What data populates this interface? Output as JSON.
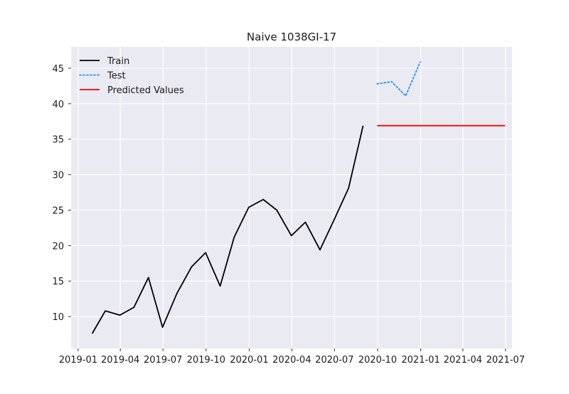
{
  "chart_data": {
    "type": "line",
    "title": "Naive 1038GI-17",
    "xlabel": "",
    "ylabel": "",
    "x_ticks": [
      "2019-01",
      "2019-04",
      "2019-07",
      "2019-10",
      "2020-01",
      "2020-04",
      "2020-07",
      "2020-10",
      "2021-01",
      "2021-04",
      "2021-07"
    ],
    "y_ticks": [
      "10",
      "15",
      "20",
      "25",
      "30",
      "35",
      "40",
      "45"
    ],
    "xlim": [
      "2018-12-17",
      "2021-07-15"
    ],
    "ylim": [
      5.5,
      48
    ],
    "grid": true,
    "legend_position": "top-left",
    "series": [
      {
        "name": "Train",
        "style": "solid",
        "color": "#000000",
        "x": [
          "2019-01-31",
          "2019-02-28",
          "2019-03-31",
          "2019-04-30",
          "2019-05-31",
          "2019-06-30",
          "2019-07-31",
          "2019-08-31",
          "2019-09-30",
          "2019-10-31",
          "2019-11-30",
          "2019-12-31",
          "2020-01-31",
          "2020-02-29",
          "2020-03-31",
          "2020-04-30",
          "2020-05-31",
          "2020-06-30",
          "2020-07-31",
          "2020-08-31"
        ],
        "values": [
          7.6,
          10.8,
          10.2,
          11.3,
          15.5,
          8.5,
          13.3,
          17.0,
          19.0,
          14.3,
          21.2,
          25.4,
          26.5,
          25.0,
          21.4,
          23.3,
          19.4,
          23.6,
          28.1,
          36.9
        ]
      },
      {
        "name": "Test",
        "style": "dotted",
        "color": "#1e90ff",
        "x": [
          "2020-09-30",
          "2020-10-31",
          "2020-11-30",
          "2020-12-31"
        ],
        "values": [
          42.8,
          43.1,
          41.1,
          45.9
        ]
      },
      {
        "name": "Predicted Values",
        "style": "solid",
        "color": "#ff0000",
        "x": [
          "2020-09-30",
          "2021-06-30"
        ],
        "values": [
          36.9,
          36.9
        ]
      }
    ]
  }
}
